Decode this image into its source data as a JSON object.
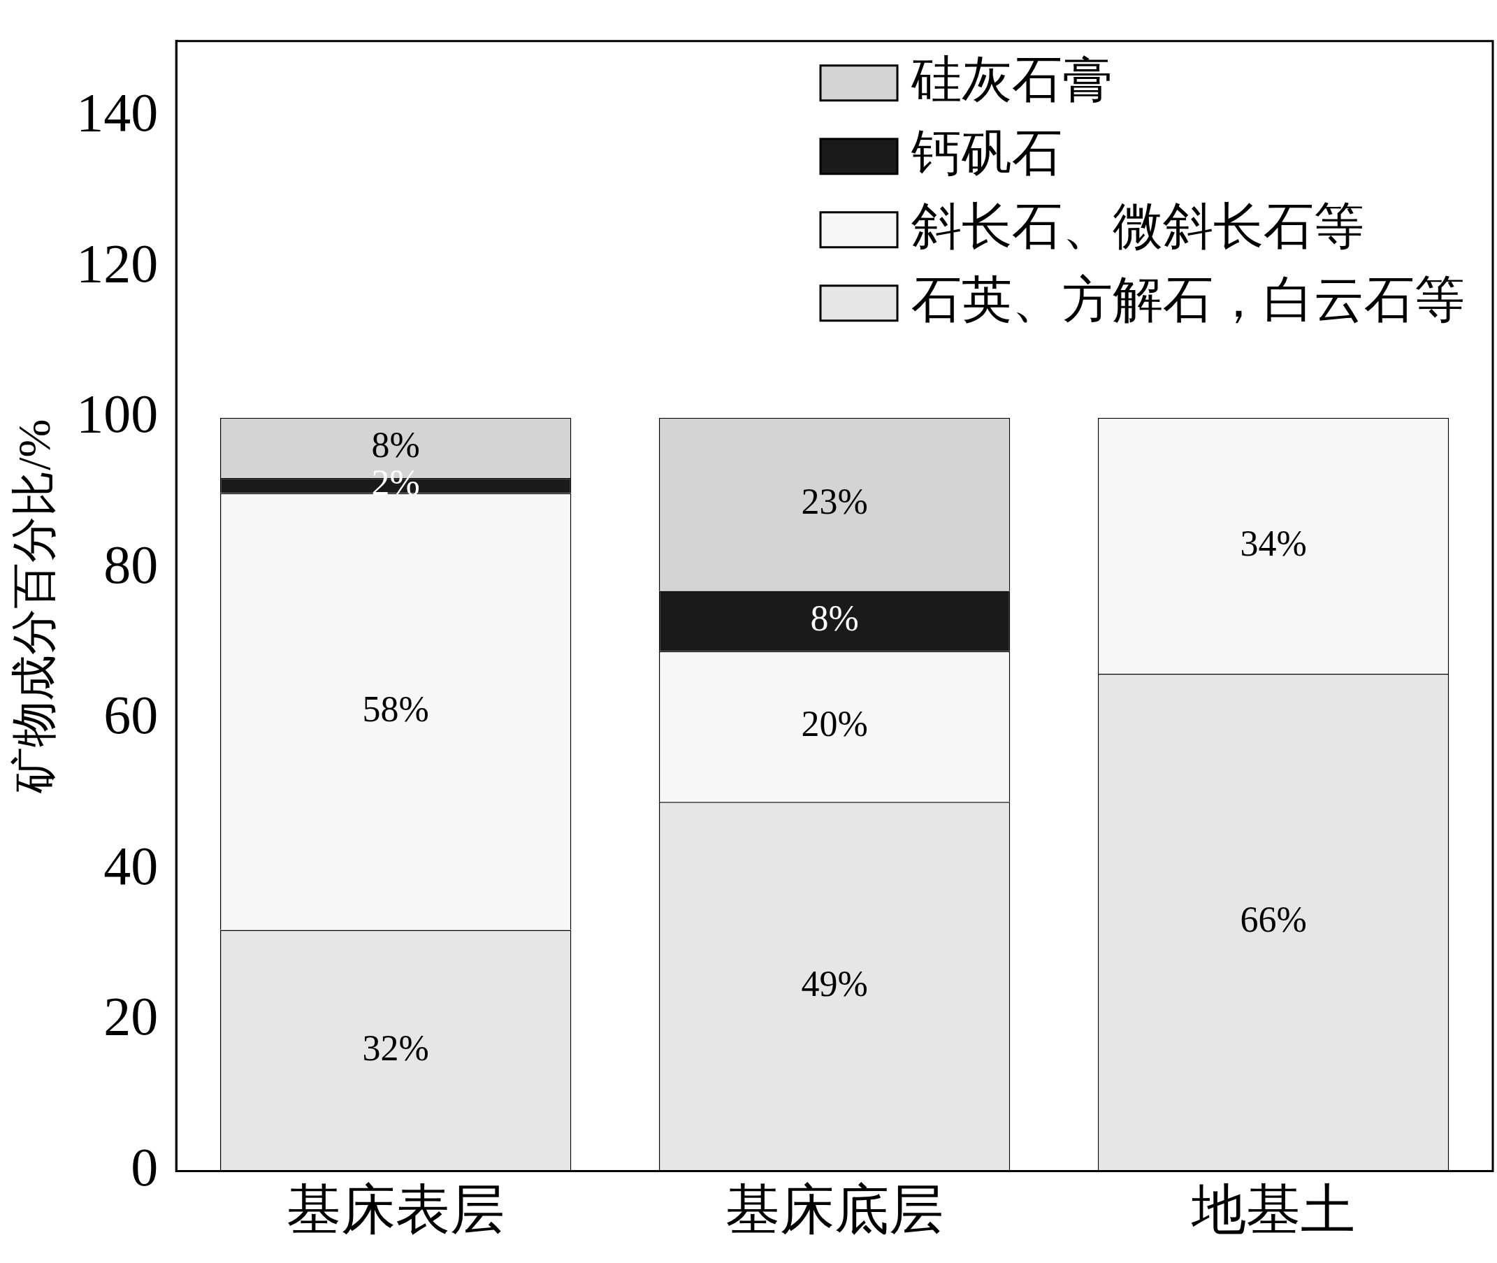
{
  "chart_data": {
    "type": "bar",
    "stacked": true,
    "ylabel": "矿物成分百分比/%",
    "categories": [
      "基床表层",
      "基床底层",
      "地基土"
    ],
    "ylim": [
      0,
      150
    ],
    "yticks": [
      0,
      20,
      40,
      60,
      80,
      100,
      120,
      140
    ],
    "grid": false,
    "legend": "top right",
    "series": [
      {
        "name": "石英、方解石，白云石等",
        "color": "#e6e6e6",
        "values": [
          32,
          49,
          66
        ],
        "value_labels": [
          "32%",
          "49%",
          "66%"
        ]
      },
      {
        "name": "斜长石、微斜长石等",
        "color": "#f7f7f7",
        "values": [
          58,
          20,
          34
        ],
        "value_labels": [
          "58%",
          "20%",
          "34%"
        ]
      },
      {
        "name": "钙矾石",
        "color": "#1a1a1a",
        "values": [
          2,
          8,
          null
        ],
        "value_labels": [
          "2%",
          "8%",
          null
        ]
      },
      {
        "name": "硅灰石膏",
        "color": "#d4d4d4",
        "values": [
          8,
          23,
          null
        ],
        "value_labels": [
          "8%",
          "23%",
          null
        ]
      }
    ]
  }
}
